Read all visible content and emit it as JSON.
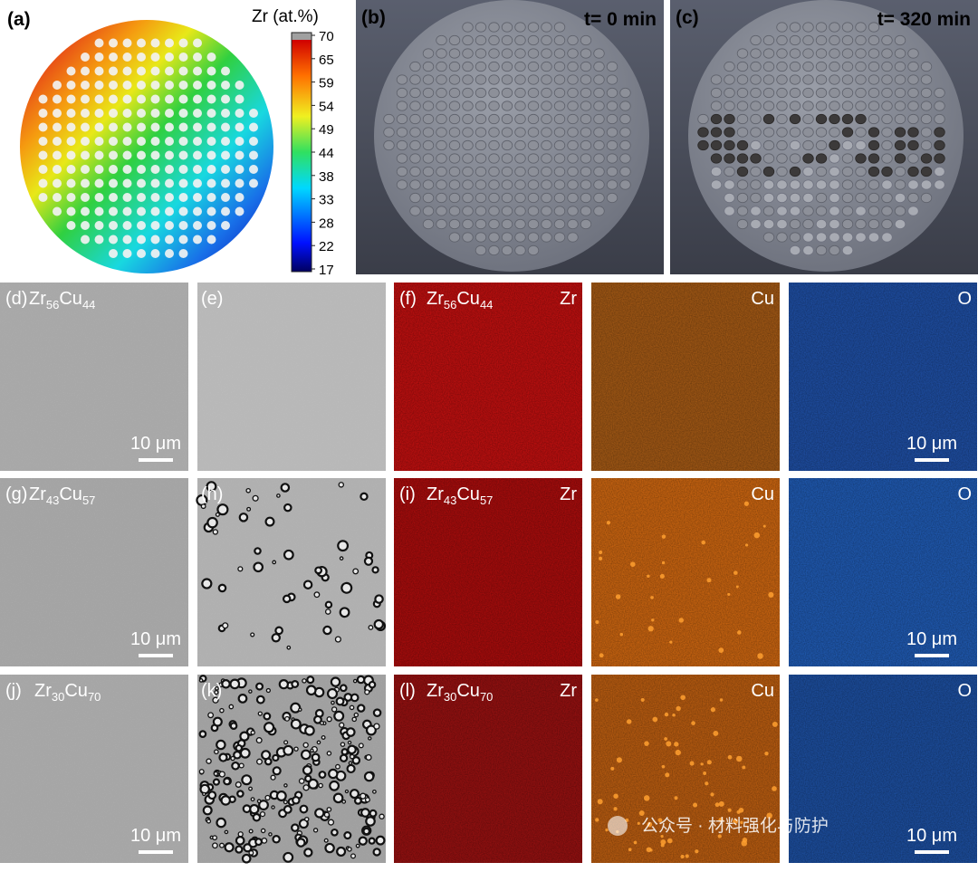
{
  "panels": {
    "a": {
      "label": "(a)",
      "colorbar": {
        "title": "Zr (at.%)",
        "ticks": [
          70,
          65,
          59,
          54,
          49,
          44,
          38,
          33,
          28,
          22,
          17
        ]
      }
    },
    "b": {
      "label": "(b)",
      "caption": "t= 0 min"
    },
    "c": {
      "label": "(c)",
      "caption": "t= 320 min"
    }
  },
  "rows": [
    {
      "sem_label": "(d)",
      "bse_label": "(e)",
      "eds_label": "(f)",
      "composition": {
        "el1": "Zr",
        "n1": "56",
        "el2": "Cu",
        "n2": "44"
      },
      "maps": [
        "Zr",
        "Cu",
        "O"
      ],
      "scale_bar": "10 μm"
    },
    {
      "sem_label": "(g)",
      "bse_label": "(h)",
      "eds_label": "(i)",
      "composition": {
        "el1": "Zr",
        "n1": "43",
        "el2": "Cu",
        "n2": "57"
      },
      "maps": [
        "Zr",
        "Cu",
        "O"
      ],
      "scale_bar": "10 μm"
    },
    {
      "sem_label": "(j)",
      "bse_label": "(k)",
      "eds_label": "(l)",
      "composition": {
        "el1": "Zr",
        "n1": "30",
        "el2": "Cu",
        "n2": "70"
      },
      "maps": [
        "Zr",
        "Cu",
        "O"
      ],
      "scale_bar": "10 μm"
    }
  ],
  "watermark": "公众号 · 材料强化与防护"
}
